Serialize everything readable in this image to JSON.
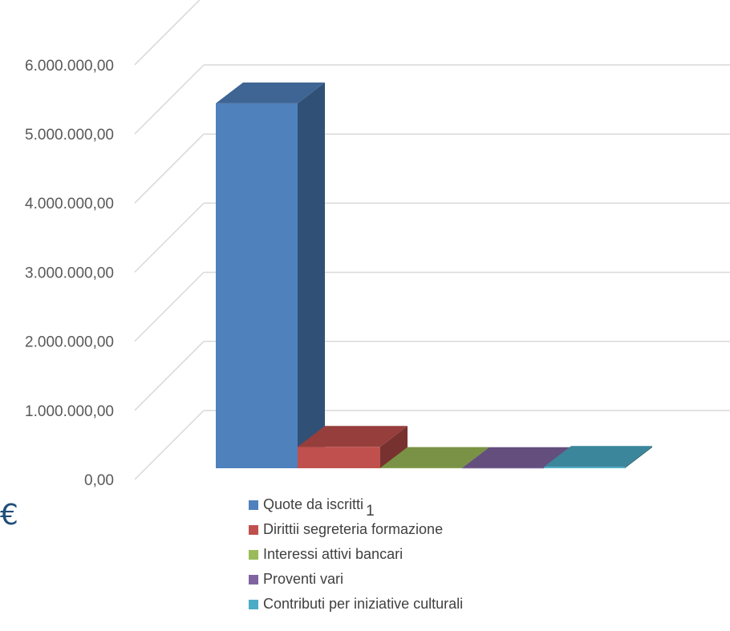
{
  "chart_data": {
    "type": "bar",
    "three_d": true,
    "categories": [
      "Quote da iscritti",
      "Dirittii segreteria formazione",
      "Interessi attivi bancari",
      "Proventi vari",
      "Contributi per iniziative culturali"
    ],
    "values": [
      5280000,
      310000,
      5000,
      3000,
      20000
    ],
    "colors": [
      "#4f81bd",
      "#c0504d",
      "#9bbb59",
      "#8064a2",
      "#4bacc6"
    ],
    "y_ticks": [
      "0,00",
      "1.000.000,00",
      "2.000.000,00",
      "3.000.000,00",
      "4.000.000,00",
      "5.000.000,00",
      "6.000.000,00"
    ],
    "ylim": [
      0,
      6000000
    ],
    "grid": true,
    "legend_position": "bottom",
    "legend_suffix": "1",
    "currency_symbol": "€"
  }
}
